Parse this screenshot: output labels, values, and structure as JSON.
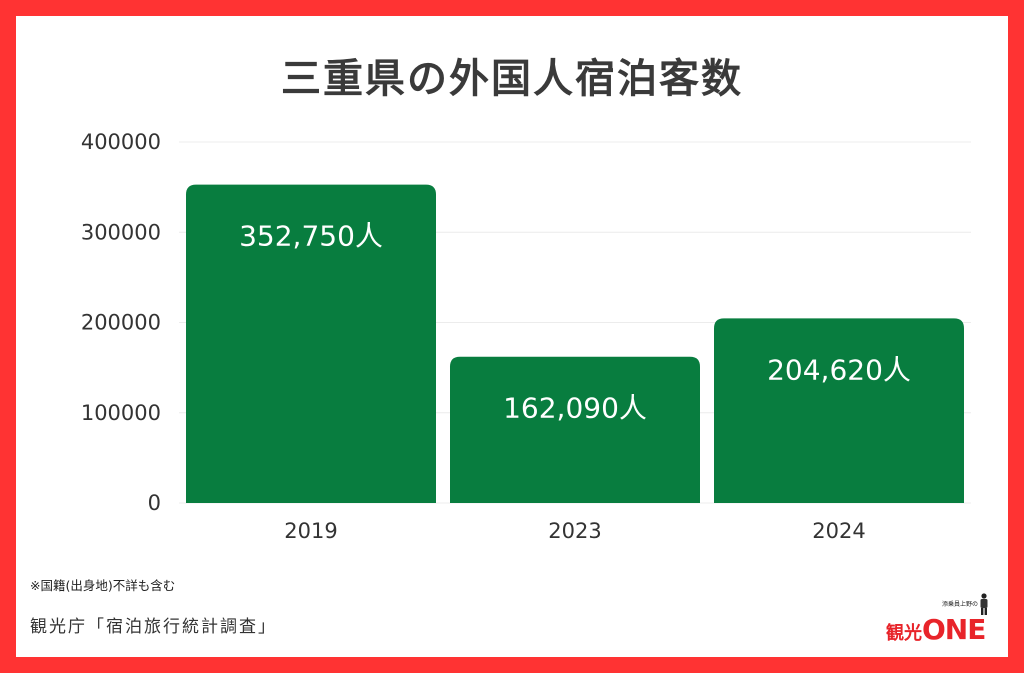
{
  "chart_data": {
    "type": "bar",
    "title": "三重県の外国人宿泊客数",
    "categories": [
      "2019",
      "2023",
      "2024"
    ],
    "values": [
      352750,
      162090,
      204620
    ],
    "value_labels": [
      "352,750人",
      "162,090人",
      "204,620人"
    ],
    "ylim": [
      0,
      400000
    ],
    "y_ticks": [
      "0",
      "100000",
      "200000",
      "300000",
      "400000"
    ],
    "xlabel": "",
    "ylabel": "",
    "grid": true,
    "bar_color": "#087d3f"
  },
  "note": "※国籍(出身地)不詳も含む",
  "source": "観光庁「宿泊旅行統計調査」",
  "logo": {
    "tagline": "添乗員上野の",
    "kanko": "観光",
    "one": "ONE"
  },
  "colors": {
    "frame": "#ff3333",
    "accent": "#e8242a"
  }
}
